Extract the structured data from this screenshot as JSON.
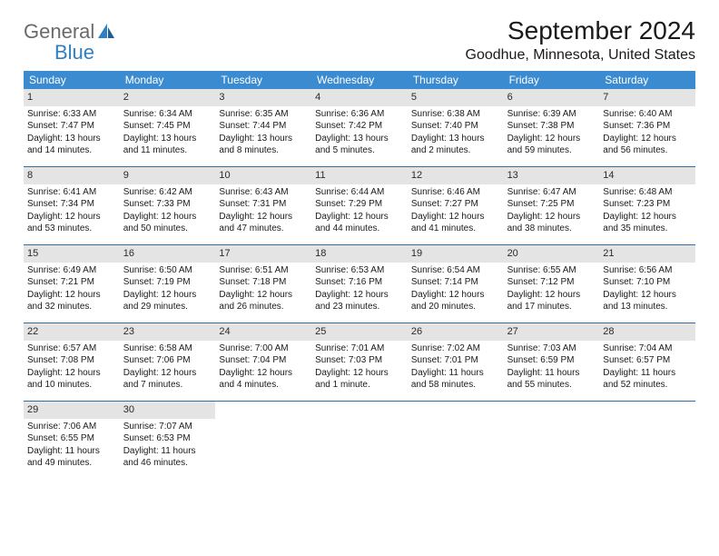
{
  "logo": {
    "word1": "General",
    "word2": "Blue"
  },
  "title": "September 2024",
  "location": "Goodhue, Minnesota, United States",
  "colors": {
    "header_bg": "#3a8bd0",
    "header_text": "#ffffff",
    "daynum_bg": "#e4e4e4",
    "week_border": "#2f6fa8",
    "logo_gray": "#6a6a6a",
    "logo_blue": "#2f7fc2"
  },
  "dow": [
    "Sunday",
    "Monday",
    "Tuesday",
    "Wednesday",
    "Thursday",
    "Friday",
    "Saturday"
  ],
  "weeks": [
    [
      {
        "n": "1",
        "sr": "Sunrise: 6:33 AM",
        "ss": "Sunset: 7:47 PM",
        "d1": "Daylight: 13 hours",
        "d2": "and 14 minutes."
      },
      {
        "n": "2",
        "sr": "Sunrise: 6:34 AM",
        "ss": "Sunset: 7:45 PM",
        "d1": "Daylight: 13 hours",
        "d2": "and 11 minutes."
      },
      {
        "n": "3",
        "sr": "Sunrise: 6:35 AM",
        "ss": "Sunset: 7:44 PM",
        "d1": "Daylight: 13 hours",
        "d2": "and 8 minutes."
      },
      {
        "n": "4",
        "sr": "Sunrise: 6:36 AM",
        "ss": "Sunset: 7:42 PM",
        "d1": "Daylight: 13 hours",
        "d2": "and 5 minutes."
      },
      {
        "n": "5",
        "sr": "Sunrise: 6:38 AM",
        "ss": "Sunset: 7:40 PM",
        "d1": "Daylight: 13 hours",
        "d2": "and 2 minutes."
      },
      {
        "n": "6",
        "sr": "Sunrise: 6:39 AM",
        "ss": "Sunset: 7:38 PM",
        "d1": "Daylight: 12 hours",
        "d2": "and 59 minutes."
      },
      {
        "n": "7",
        "sr": "Sunrise: 6:40 AM",
        "ss": "Sunset: 7:36 PM",
        "d1": "Daylight: 12 hours",
        "d2": "and 56 minutes."
      }
    ],
    [
      {
        "n": "8",
        "sr": "Sunrise: 6:41 AM",
        "ss": "Sunset: 7:34 PM",
        "d1": "Daylight: 12 hours",
        "d2": "and 53 minutes."
      },
      {
        "n": "9",
        "sr": "Sunrise: 6:42 AM",
        "ss": "Sunset: 7:33 PM",
        "d1": "Daylight: 12 hours",
        "d2": "and 50 minutes."
      },
      {
        "n": "10",
        "sr": "Sunrise: 6:43 AM",
        "ss": "Sunset: 7:31 PM",
        "d1": "Daylight: 12 hours",
        "d2": "and 47 minutes."
      },
      {
        "n": "11",
        "sr": "Sunrise: 6:44 AM",
        "ss": "Sunset: 7:29 PM",
        "d1": "Daylight: 12 hours",
        "d2": "and 44 minutes."
      },
      {
        "n": "12",
        "sr": "Sunrise: 6:46 AM",
        "ss": "Sunset: 7:27 PM",
        "d1": "Daylight: 12 hours",
        "d2": "and 41 minutes."
      },
      {
        "n": "13",
        "sr": "Sunrise: 6:47 AM",
        "ss": "Sunset: 7:25 PM",
        "d1": "Daylight: 12 hours",
        "d2": "and 38 minutes."
      },
      {
        "n": "14",
        "sr": "Sunrise: 6:48 AM",
        "ss": "Sunset: 7:23 PM",
        "d1": "Daylight: 12 hours",
        "d2": "and 35 minutes."
      }
    ],
    [
      {
        "n": "15",
        "sr": "Sunrise: 6:49 AM",
        "ss": "Sunset: 7:21 PM",
        "d1": "Daylight: 12 hours",
        "d2": "and 32 minutes."
      },
      {
        "n": "16",
        "sr": "Sunrise: 6:50 AM",
        "ss": "Sunset: 7:19 PM",
        "d1": "Daylight: 12 hours",
        "d2": "and 29 minutes."
      },
      {
        "n": "17",
        "sr": "Sunrise: 6:51 AM",
        "ss": "Sunset: 7:18 PM",
        "d1": "Daylight: 12 hours",
        "d2": "and 26 minutes."
      },
      {
        "n": "18",
        "sr": "Sunrise: 6:53 AM",
        "ss": "Sunset: 7:16 PM",
        "d1": "Daylight: 12 hours",
        "d2": "and 23 minutes."
      },
      {
        "n": "19",
        "sr": "Sunrise: 6:54 AM",
        "ss": "Sunset: 7:14 PM",
        "d1": "Daylight: 12 hours",
        "d2": "and 20 minutes."
      },
      {
        "n": "20",
        "sr": "Sunrise: 6:55 AM",
        "ss": "Sunset: 7:12 PM",
        "d1": "Daylight: 12 hours",
        "d2": "and 17 minutes."
      },
      {
        "n": "21",
        "sr": "Sunrise: 6:56 AM",
        "ss": "Sunset: 7:10 PM",
        "d1": "Daylight: 12 hours",
        "d2": "and 13 minutes."
      }
    ],
    [
      {
        "n": "22",
        "sr": "Sunrise: 6:57 AM",
        "ss": "Sunset: 7:08 PM",
        "d1": "Daylight: 12 hours",
        "d2": "and 10 minutes."
      },
      {
        "n": "23",
        "sr": "Sunrise: 6:58 AM",
        "ss": "Sunset: 7:06 PM",
        "d1": "Daylight: 12 hours",
        "d2": "and 7 minutes."
      },
      {
        "n": "24",
        "sr": "Sunrise: 7:00 AM",
        "ss": "Sunset: 7:04 PM",
        "d1": "Daylight: 12 hours",
        "d2": "and 4 minutes."
      },
      {
        "n": "25",
        "sr": "Sunrise: 7:01 AM",
        "ss": "Sunset: 7:03 PM",
        "d1": "Daylight: 12 hours",
        "d2": "and 1 minute."
      },
      {
        "n": "26",
        "sr": "Sunrise: 7:02 AM",
        "ss": "Sunset: 7:01 PM",
        "d1": "Daylight: 11 hours",
        "d2": "and 58 minutes."
      },
      {
        "n": "27",
        "sr": "Sunrise: 7:03 AM",
        "ss": "Sunset: 6:59 PM",
        "d1": "Daylight: 11 hours",
        "d2": "and 55 minutes."
      },
      {
        "n": "28",
        "sr": "Sunrise: 7:04 AM",
        "ss": "Sunset: 6:57 PM",
        "d1": "Daylight: 11 hours",
        "d2": "and 52 minutes."
      }
    ],
    [
      {
        "n": "29",
        "sr": "Sunrise: 7:06 AM",
        "ss": "Sunset: 6:55 PM",
        "d1": "Daylight: 11 hours",
        "d2": "and 49 minutes."
      },
      {
        "n": "30",
        "sr": "Sunrise: 7:07 AM",
        "ss": "Sunset: 6:53 PM",
        "d1": "Daylight: 11 hours",
        "d2": "and 46 minutes."
      },
      {
        "empty": true
      },
      {
        "empty": true
      },
      {
        "empty": true
      },
      {
        "empty": true
      },
      {
        "empty": true
      }
    ]
  ]
}
